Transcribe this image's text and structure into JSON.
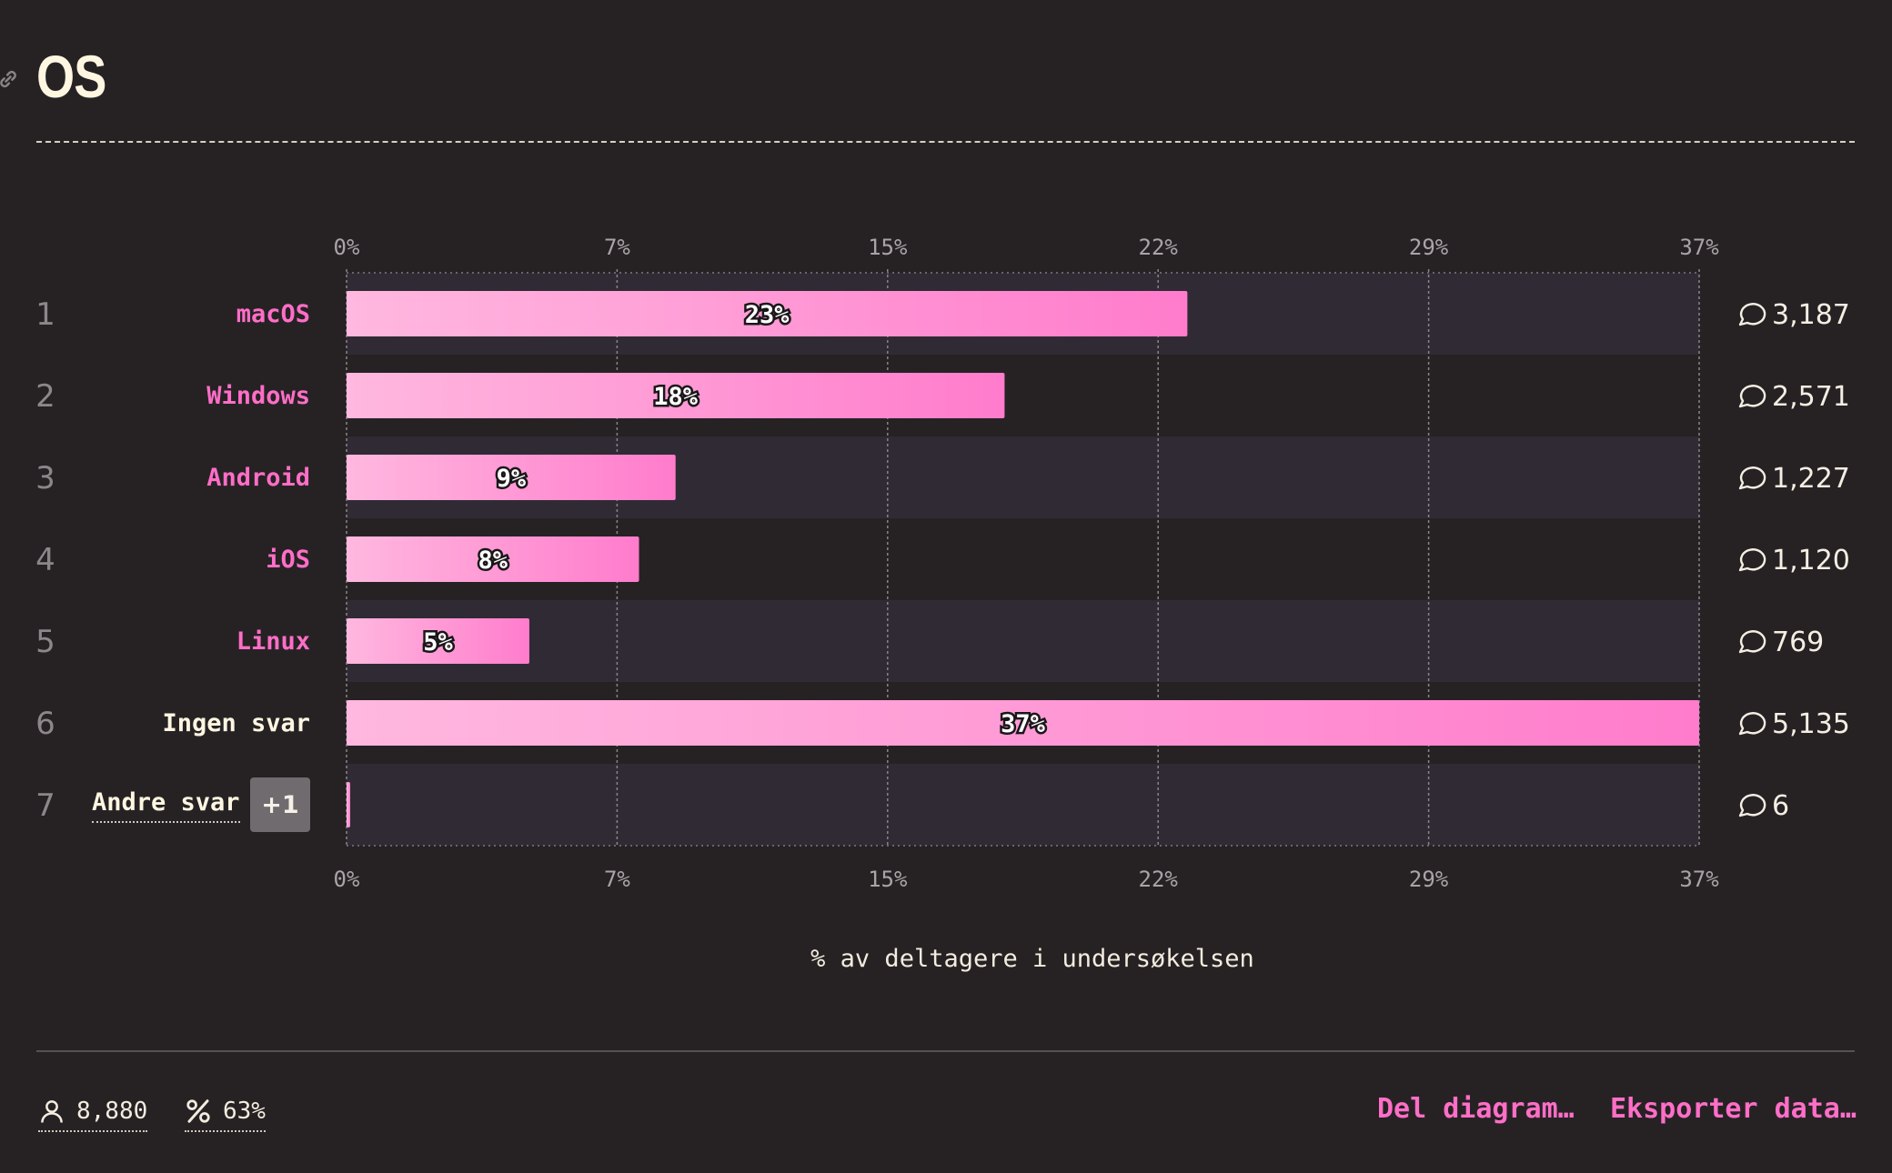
{
  "title": "OS",
  "chart_data": {
    "type": "bar",
    "orientation": "horizontal",
    "categories": [
      "macOS",
      "Windows",
      "Android",
      "iOS",
      "Linux",
      "Ingen svar",
      "Andre svar"
    ],
    "ranks": [
      "1",
      "2",
      "3",
      "4",
      "5",
      "6",
      "7"
    ],
    "values": [
      23,
      18,
      9,
      8,
      5,
      37,
      0.1
    ],
    "value_labels": [
      "23%",
      "18%",
      "9%",
      "8%",
      "5%",
      "37%",
      ""
    ],
    "counts": [
      "3,187",
      "2,571",
      "1,227",
      "1,120",
      "769",
      "5,135",
      "6"
    ],
    "ticks": [
      "0%",
      "7%",
      "15%",
      "22%",
      "29%",
      "37%"
    ],
    "xlim": [
      0,
      37
    ],
    "xlabel": "% av deltagere i undersøkelsen",
    "grid": true,
    "other_badge": "+1",
    "colors": {
      "bar_start": "#ffb8df",
      "bar_end": "#ff7ccc",
      "label_pink": "#ff6ec7",
      "label_white": "#fff6e2",
      "row_alt": "#302a34"
    }
  },
  "footer": {
    "respondents": "8,880",
    "percentage": "63%",
    "share_label": "Del diagram…",
    "export_label": "Eksporter data…"
  }
}
